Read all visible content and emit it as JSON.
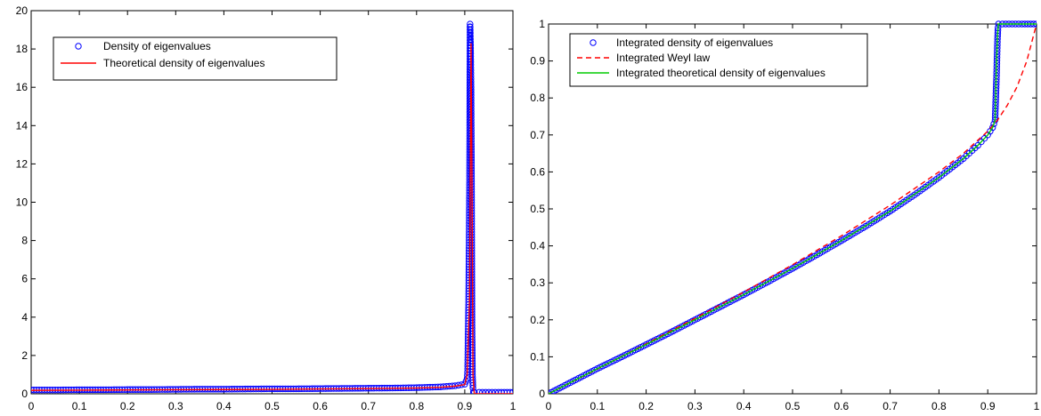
{
  "chart_data": [
    {
      "type": "line",
      "title": "",
      "xlabel": "",
      "ylabel": "",
      "xlim": [
        0,
        1
      ],
      "ylim": [
        0,
        20
      ],
      "x_ticks": [
        0,
        0.1,
        0.2,
        0.3,
        0.4,
        0.5,
        0.6,
        0.7,
        0.8,
        0.9,
        1
      ],
      "x_tick_labels": [
        "0",
        "0.1",
        "0.2",
        "0.3",
        "0.4",
        "0.5",
        "0.6",
        "0.7",
        "0.8",
        "0.9",
        "1"
      ],
      "y_ticks": [
        0,
        2,
        4,
        6,
        8,
        10,
        12,
        14,
        16,
        18,
        20
      ],
      "y_tick_labels": [
        "0",
        "2",
        "4",
        "6",
        "8",
        "10",
        "12",
        "14",
        "16",
        "18",
        "20"
      ],
      "grid": false,
      "legend_position": "top-left",
      "series": [
        {
          "name": "Density of eigenvalues",
          "style": "markers",
          "marker": "circle",
          "color": "#0000ff",
          "x": [
            0.0,
            0.05,
            0.1,
            0.15,
            0.2,
            0.25,
            0.3,
            0.35,
            0.4,
            0.45,
            0.5,
            0.55,
            0.6,
            0.65,
            0.7,
            0.75,
            0.8,
            0.85,
            0.88,
            0.9,
            0.905,
            0.906,
            0.907,
            0.908,
            0.909,
            0.91,
            0.911,
            0.912,
            0.913,
            0.914,
            0.915,
            0.916,
            0.917,
            0.918,
            0.92,
            0.93,
            0.95,
            0.97,
            1.0
          ],
          "y": [
            0.2,
            0.2,
            0.21,
            0.21,
            0.22,
            0.22,
            0.23,
            0.24,
            0.24,
            0.25,
            0.26,
            0.26,
            0.27,
            0.28,
            0.29,
            0.3,
            0.32,
            0.36,
            0.42,
            0.5,
            0.8,
            1.3,
            3.1,
            4.8,
            7.6,
            11.35,
            19.3,
            18.2,
            16.0,
            11.5,
            3.7,
            1.0,
            0.3,
            0.1,
            0.08,
            0.08,
            0.08,
            0.08,
            0.08
          ]
        },
        {
          "name": "Theoretical density of eigenvalues",
          "style": "solid",
          "color": "#ff0000",
          "x": [
            0.0,
            0.1,
            0.2,
            0.3,
            0.4,
            0.5,
            0.6,
            0.7,
            0.8,
            0.85,
            0.88,
            0.9,
            0.905,
            0.91,
            0.913,
            0.915,
            0.917,
            0.919,
            0.92,
            1.0
          ],
          "y": [
            0.18,
            0.19,
            0.2,
            0.21,
            0.22,
            0.23,
            0.25,
            0.27,
            0.3,
            0.34,
            0.4,
            0.48,
            1.0,
            5.0,
            18.3,
            11.0,
            1.0,
            0.2,
            0.0,
            0.0
          ]
        }
      ]
    },
    {
      "type": "line",
      "title": "",
      "xlabel": "",
      "ylabel": "",
      "xlim": [
        0,
        1
      ],
      "ylim": [
        0,
        1
      ],
      "x_ticks": [
        0,
        0.1,
        0.2,
        0.3,
        0.4,
        0.5,
        0.6,
        0.7,
        0.8,
        0.9,
        1
      ],
      "x_tick_labels": [
        "0",
        "0.1",
        "0.2",
        "0.3",
        "0.4",
        "0.5",
        "0.6",
        "0.7",
        "0.8",
        "0.9",
        "1"
      ],
      "y_ticks": [
        0,
        0.1,
        0.2,
        0.3,
        0.4,
        0.5,
        0.6,
        0.7,
        0.8,
        0.9,
        1
      ],
      "y_tick_labels": [
        "0",
        "0.1",
        "0.2",
        "0.3",
        "0.4",
        "0.5",
        "0.6",
        "0.7",
        "0.8",
        "0.9",
        "1"
      ],
      "grid": false,
      "legend_position": "top-left",
      "series": [
        {
          "name": "Integrated density of eigenvalues",
          "style": "markers",
          "marker": "circle",
          "color": "#0000ff",
          "x": [
            0.0,
            0.05,
            0.1,
            0.15,
            0.2,
            0.25,
            0.3,
            0.35,
            0.4,
            0.45,
            0.5,
            0.55,
            0.6,
            0.65,
            0.7,
            0.75,
            0.8,
            0.85,
            0.88,
            0.9,
            0.91,
            0.915,
            0.916,
            0.917,
            0.918,
            0.919,
            0.92,
            0.921,
            0.922,
            0.93,
            0.95,
            0.97,
            1.0
          ],
          "y": [
            0.0,
            0.034,
            0.068,
            0.1,
            0.133,
            0.166,
            0.2,
            0.234,
            0.268,
            0.303,
            0.339,
            0.376,
            0.414,
            0.453,
            0.494,
            0.538,
            0.585,
            0.636,
            0.672,
            0.7,
            0.72,
            0.74,
            0.78,
            0.82,
            0.86,
            0.91,
            0.96,
            0.99,
            1.0,
            1.0,
            1.0,
            1.0,
            1.0
          ]
        },
        {
          "name": "Integrated Weyl law",
          "style": "dashed",
          "color": "#ff0000",
          "x": [
            0.0,
            0.1,
            0.2,
            0.3,
            0.4,
            0.5,
            0.6,
            0.7,
            0.8,
            0.85,
            0.9,
            0.92,
            0.94,
            0.96,
            0.98,
            1.0
          ],
          "y": [
            0.0,
            0.067,
            0.135,
            0.204,
            0.275,
            0.349,
            0.427,
            0.51,
            0.6,
            0.65,
            0.71,
            0.74,
            0.78,
            0.83,
            0.9,
            1.0
          ]
        },
        {
          "name": "Integrated theoretical density of eigenvalues",
          "style": "solid",
          "color": "#00cc00",
          "x": [
            0.0,
            0.1,
            0.2,
            0.3,
            0.4,
            0.5,
            0.6,
            0.7,
            0.8,
            0.85,
            0.88,
            0.9,
            0.91,
            0.915,
            0.916,
            0.918,
            0.92,
            0.922,
            1.0
          ],
          "y": [
            0.0,
            0.068,
            0.133,
            0.2,
            0.268,
            0.339,
            0.414,
            0.494,
            0.585,
            0.636,
            0.672,
            0.7,
            0.72,
            0.74,
            0.8,
            0.9,
            0.97,
            1.0,
            1.0
          ]
        }
      ]
    }
  ]
}
